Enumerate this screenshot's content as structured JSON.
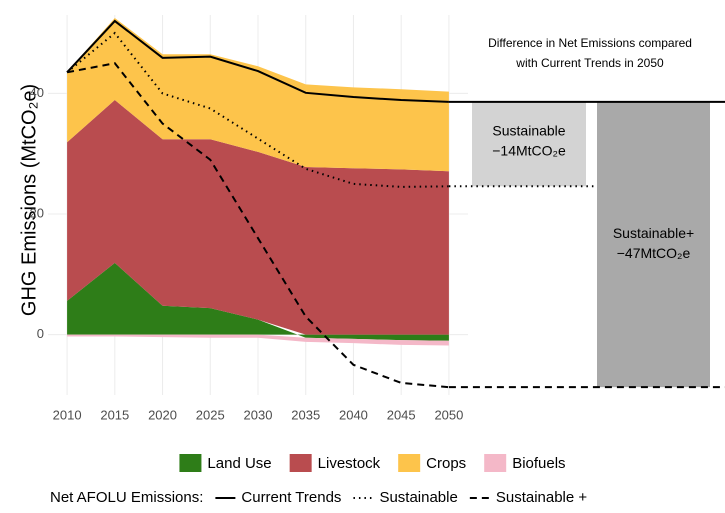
{
  "chart_data": {
    "type": "area",
    "y_label": "GHG Emissions (MtCO₂e)",
    "x": [
      2010,
      2015,
      2020,
      2025,
      2030,
      2035,
      2040,
      2045,
      2050
    ],
    "xlim": [
      2008,
      2052
    ],
    "xticks": [
      2010,
      2015,
      2020,
      2025,
      2030,
      2035,
      2040,
      2045,
      2050
    ],
    "ylim": [
      -10,
      53
    ],
    "yticks": [
      0,
      20,
      40
    ],
    "grid": true,
    "series": [
      {
        "name": "Land Use",
        "color": "#2e7d18",
        "values": [
          5.6,
          11.9,
          4.8,
          4.4,
          2.5,
          -0.5,
          -0.7,
          -0.9,
          -1.0
        ]
      },
      {
        "name": "Livestock",
        "color": "#b94c4f",
        "values": [
          26.3,
          27.0,
          27.6,
          28.0,
          27.8,
          27.8,
          27.6,
          27.4,
          27.1
        ]
      },
      {
        "name": "Crops",
        "color": "#fdc44b",
        "values": [
          11.7,
          13.6,
          14.1,
          14.1,
          14.2,
          13.7,
          13.4,
          13.3,
          13.2
        ]
      },
      {
        "name": "Biofuels",
        "color": "#f4b8c8",
        "values": [
          -0.3,
          -0.3,
          -0.4,
          -0.5,
          -0.5,
          -0.7,
          -0.7,
          -0.8,
          -0.8
        ]
      }
    ],
    "lines_title": "Net AFOLU Emissions:",
    "lines": [
      {
        "name": "Current Trends",
        "dash": "solid",
        "values": [
          43.5,
          52.0,
          45.9,
          46.1,
          43.7,
          40.1,
          39.4,
          38.9,
          38.6
        ]
      },
      {
        "name": "Sustainable",
        "dash": "dotted",
        "values": [
          43.5,
          50.0,
          40.0,
          37.5,
          32.5,
          27.5,
          25.0,
          24.5,
          24.6
        ]
      },
      {
        "name": "Sustainable +",
        "dash": "dashed",
        "values": [
          43.5,
          45.0,
          35.0,
          29.0,
          16.0,
          3.0,
          -5.0,
          -8.0,
          -8.7
        ]
      }
    ],
    "annotation": {
      "title": [
        "Difference in Net Emissions compared",
        "with Current Trends in 2050"
      ],
      "bars": [
        {
          "name": "Sustainable",
          "label": "−14MtCO₂e",
          "color": "#d3d3d3"
        },
        {
          "name": "Sustainable+",
          "label": "−47MtCO₂e",
          "color": "#a9a9a9"
        }
      ]
    }
  }
}
